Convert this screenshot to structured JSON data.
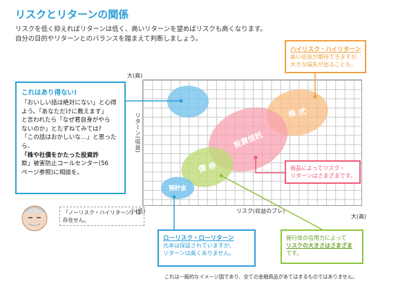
{
  "title": "リスクとリターンの関係",
  "lead": [
    "リスクを低く抑えればリターンは低く、高いリターンを望めばリスクも高くなります。",
    "自分の目的やリターンとのバランスを踏まえて判断しましょう。"
  ],
  "axes": {
    "y_high": "大(高)",
    "y_low": "小(低)",
    "x_high": "大(高)",
    "x_title": "リスク(収益のブレ)",
    "y_title": "リターン(収益)"
  },
  "blobs": {
    "kabu": "株 式",
    "toushin": "投資信託",
    "saiken": "債 券",
    "yokin": "預貯金"
  },
  "callout_ideal": {
    "title": "これはあり得ない!",
    "lines": [
      "「おいしい話は絶対にない」と心得",
      "よう。「あなただけに教えます」",
      "と言われたら「なぜ君自身がやら",
      "ないのか」とたずねてみては?",
      "「この話はおかしいな…」と思ったら、",
      "「株や社債をかたった投資詐",
      "欺」被害防止コールセンター(56",
      "ページ参照)に相談を。"
    ]
  },
  "callout_high": {
    "title": "ハイリスク・ハイリターン",
    "lines": [
      "高い収益が期待できますが、",
      "大きな損失が出ることも。"
    ]
  },
  "callout_product": {
    "lines": [
      "商品によってリスク・",
      "リターンはさまざまです。"
    ]
  },
  "callout_low": {
    "title": "ローリスク・ローリターン",
    "lines": [
      "元本は保証されていますが、",
      "リターンは高くありません。"
    ]
  },
  "callout_bond": {
    "lines": [
      "発行体の信用力によって",
      "リスクの大きさはさまざま",
      "です。"
    ]
  },
  "note": [
    "「ノーリスク・ハイリターン」は",
    "存在せん。"
  ],
  "footnote": "これは一般的なイメージ図であり、全ての金融商品があてはまるものではありません。",
  "colors": {
    "accent_blue": "#2a9fd6",
    "orange": "#f0a040",
    "pink": "#f05a78",
    "green": "#8cc63f"
  }
}
